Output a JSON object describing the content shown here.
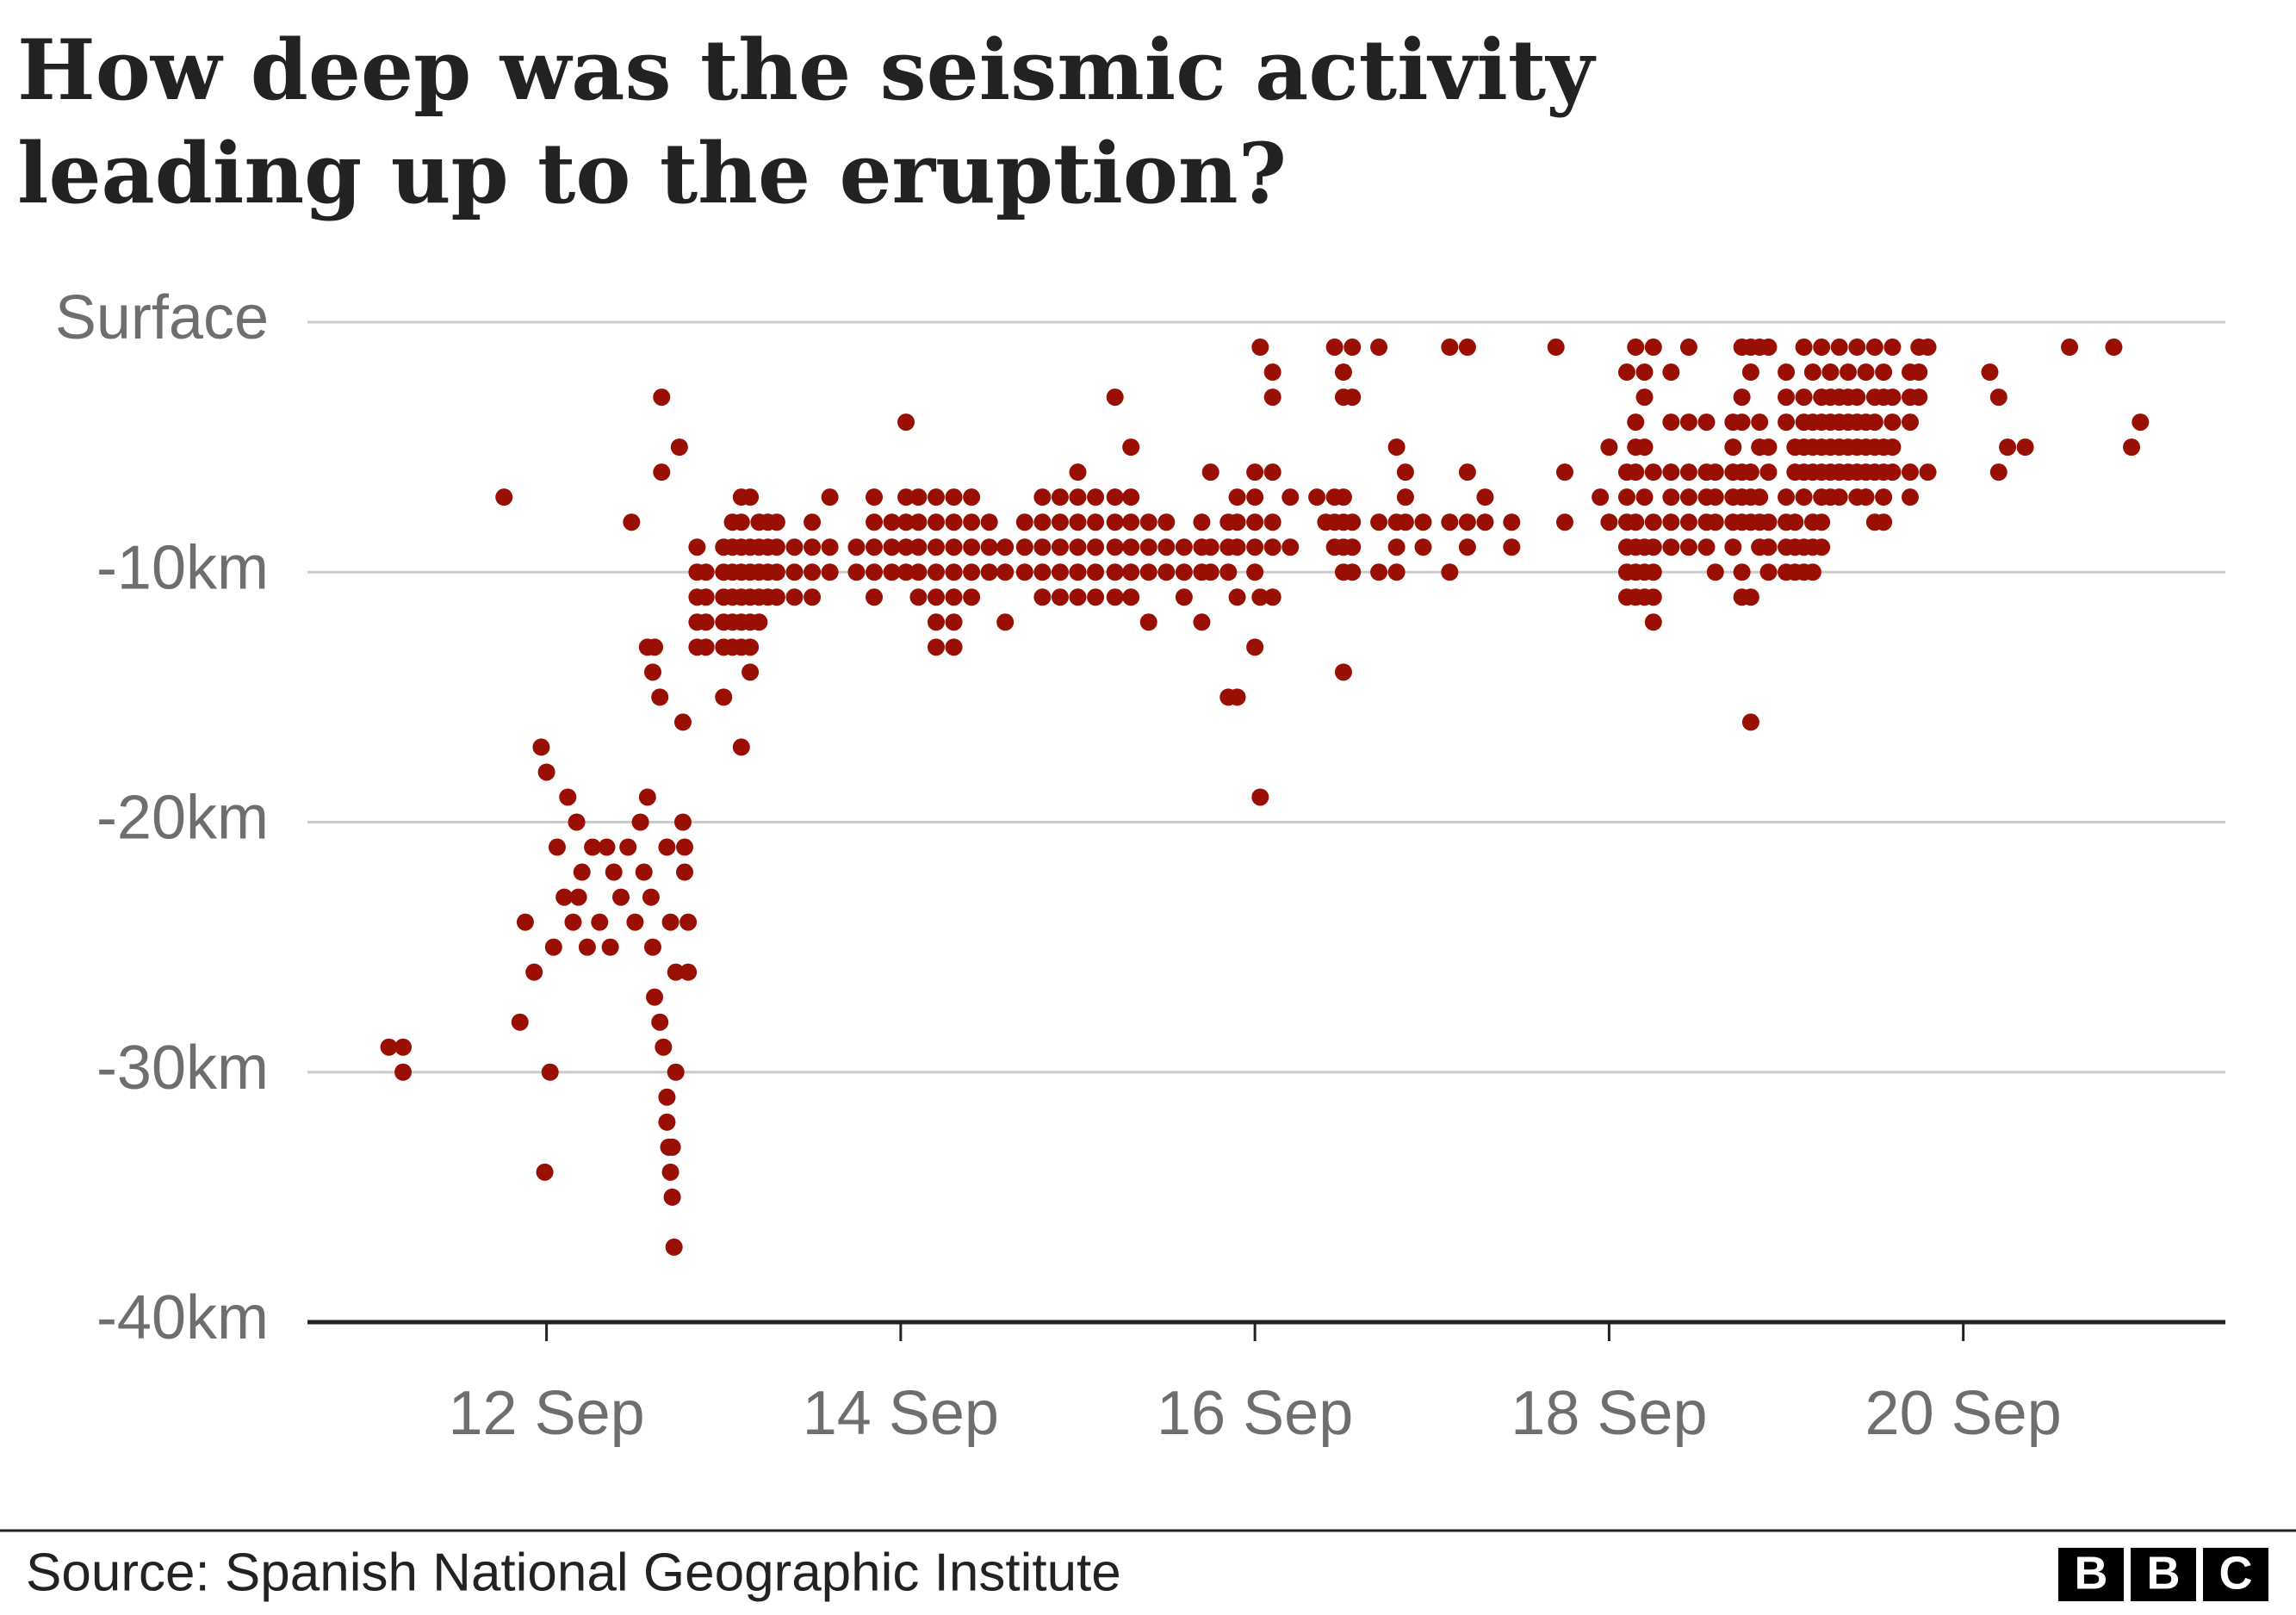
{
  "chart_data": {
    "type": "scatter",
    "title": "How deep was the seismic activity leading up to the eruption?",
    "source": "Source: Spanish National Geographic Institute",
    "logo": [
      "B",
      "B",
      "C"
    ],
    "color": "#990f04",
    "grid": true,
    "xlim": [
      10.65,
      21.48
    ],
    "ylim": [
      -40,
      0
    ],
    "xticks": [
      {
        "value": 12,
        "label": "12 Sep"
      },
      {
        "value": 14,
        "label": "14 Sep"
      },
      {
        "value": 16,
        "label": "16 Sep"
      },
      {
        "value": 18,
        "label": "18 Sep"
      },
      {
        "value": 20,
        "label": "20 Sep"
      }
    ],
    "yticks": [
      {
        "value": 0,
        "label": "Surface"
      },
      {
        "value": -10,
        "label": "-10km"
      },
      {
        "value": -20,
        "label": "-20km"
      },
      {
        "value": -30,
        "label": "-30km"
      },
      {
        "value": -40,
        "label": "-40km"
      }
    ],
    "x": [
      11.11,
      11.19,
      11.19,
      11.76,
      11.85,
      11.88,
      11.93,
      11.97,
      11.99,
      12.0,
      12.02,
      12.04,
      12.06,
      12.1,
      12.12,
      12.15,
      12.17,
      12.18,
      12.2,
      12.23,
      12.26,
      12.3,
      12.34,
      12.36,
      12.38,
      12.42,
      12.46,
      12.48,
      12.5,
      12.53,
      12.55,
      12.57,
      12.57,
      12.59,
      12.6,
      12.6,
      12.61,
      12.61,
      12.64,
      12.64,
      12.65,
      12.65,
      12.66,
      12.68,
      12.68,
      12.68,
      12.69,
      12.7,
      12.7,
      12.71,
      12.71,
      12.72,
      12.73,
      12.73,
      12.75,
      12.77,
      12.77,
      12.78,
      12.78,
      12.8,
      12.8,
      12.85,
      12.85,
      12.85,
      12.85,
      12.85,
      12.9,
      12.9,
      12.9,
      12.9,
      13.0,
      13.0,
      13.0,
      13.0,
      13.0,
      13.0,
      13.05,
      13.05,
      13.05,
      13.05,
      13.05,
      13.05,
      13.1,
      13.1,
      13.1,
      13.1,
      13.1,
      13.1,
      13.1,
      13.1,
      13.15,
      13.15,
      13.15,
      13.15,
      13.15,
      13.15,
      13.15,
      13.2,
      13.2,
      13.2,
      13.2,
      13.2,
      13.25,
      13.25,
      13.25,
      13.25,
      13.3,
      13.3,
      13.3,
      13.3,
      13.4,
      13.4,
      13.4,
      13.5,
      13.5,
      13.5,
      13.5,
      13.6,
      13.6,
      13.6,
      13.75,
      13.75,
      13.85,
      13.85,
      13.85,
      13.85,
      13.85,
      13.95,
      13.95,
      13.95,
      14.03,
      14.03,
      14.03,
      14.03,
      14.03,
      14.1,
      14.1,
      14.1,
      14.1,
      14.1,
      14.2,
      14.2,
      14.2,
      14.2,
      14.2,
      14.2,
      14.2,
      14.3,
      14.3,
      14.3,
      14.3,
      14.3,
      14.3,
      14.3,
      14.4,
      14.4,
      14.4,
      14.4,
      14.4,
      14.5,
      14.5,
      14.5,
      14.59,
      14.59,
      14.59,
      14.7,
      14.7,
      14.7,
      14.8,
      14.8,
      14.8,
      14.8,
      14.8,
      14.9,
      14.9,
      14.9,
      14.9,
      14.9,
      15.0,
      15.0,
      15.0,
      15.0,
      15.0,
      15.0,
      15.1,
      15.1,
      15.1,
      15.1,
      15.1,
      15.21,
      15.21,
      15.21,
      15.21,
      15.21,
      15.21,
      15.3,
      15.3,
      15.3,
      15.3,
      15.3,
      15.3,
      15.4,
      15.4,
      15.4,
      15.4,
      15.5,
      15.5,
      15.5,
      15.6,
      15.6,
      15.6,
      15.7,
      15.7,
      15.7,
      15.7,
      15.75,
      15.75,
      15.75,
      15.85,
      15.85,
      15.85,
      15.85,
      15.9,
      15.9,
      15.9,
      15.9,
      15.9,
      16.0,
      16.0,
      16.0,
      16.0,
      16.0,
      16.0,
      16.03,
      16.03,
      16.03,
      16.1,
      16.1,
      16.1,
      16.1,
      16.1,
      16.1,
      16.2,
      16.2,
      16.35,
      16.4,
      16.45,
      16.45,
      16.45,
      16.45,
      16.5,
      16.5,
      16.5,
      16.5,
      16.5,
      16.5,
      16.5,
      16.55,
      16.55,
      16.55,
      16.55,
      16.55,
      16.7,
      16.7,
      16.7,
      16.8,
      16.8,
      16.8,
      16.8,
      16.85,
      16.85,
      16.85,
      16.95,
      16.95,
      17.1,
      17.1,
      17.1,
      17.2,
      17.2,
      17.2,
      17.2,
      17.3,
      17.3,
      17.45,
      17.45,
      17.7,
      17.75,
      17.75,
      17.95,
      18.0,
      18.0,
      18.1,
      18.1,
      18.1,
      18.1,
      18.1,
      18.1,
      18.1,
      18.15,
      18.15,
      18.15,
      18.15,
      18.15,
      18.15,
      18.15,
      18.15,
      18.2,
      18.2,
      18.2,
      18.2,
      18.2,
      18.2,
      18.2,
      18.25,
      18.25,
      18.25,
      18.25,
      18.25,
      18.25,
      18.25,
      18.35,
      18.35,
      18.35,
      18.35,
      18.35,
      18.35,
      18.45,
      18.45,
      18.45,
      18.45,
      18.45,
      18.45,
      18.55,
      18.55,
      18.55,
      18.55,
      18.55,
      18.6,
      18.6,
      18.6,
      18.6,
      18.7,
      18.7,
      18.7,
      18.7,
      18.7,
      18.7,
      18.75,
      18.75,
      18.75,
      18.75,
      18.75,
      18.75,
      18.75,
      18.75,
      18.8,
      18.8,
      18.8,
      18.8,
      18.8,
      18.8,
      18.8,
      18.85,
      18.85,
      18.85,
      18.85,
      18.85,
      18.85,
      18.9,
      18.9,
      18.9,
      18.9,
      18.9,
      18.9,
      19.0,
      19.0,
      19.0,
      19.0,
      19.0,
      19.0,
      19.0,
      19.05,
      19.05,
      19.05,
      19.05,
      19.05,
      19.1,
      19.1,
      19.1,
      19.1,
      19.1,
      19.1,
      19.1,
      19.1,
      19.15,
      19.15,
      19.15,
      19.15,
      19.15,
      19.15,
      19.15,
      19.2,
      19.2,
      19.2,
      19.2,
      19.2,
      19.2,
      19.2,
      19.2,
      19.25,
      19.25,
      19.25,
      19.25,
      19.25,
      19.25,
      19.3,
      19.3,
      19.3,
      19.3,
      19.3,
      19.3,
      19.35,
      19.35,
      19.35,
      19.35,
      19.35,
      19.4,
      19.4,
      19.4,
      19.4,
      19.4,
      19.4,
      19.45,
      19.45,
      19.45,
      19.45,
      19.45,
      19.5,
      19.5,
      19.5,
      19.5,
      19.5,
      19.5,
      19.55,
      19.55,
      19.55,
      19.55,
      19.55,
      19.55,
      19.6,
      19.6,
      19.6,
      19.6,
      19.6,
      19.7,
      19.7,
      19.7,
      19.7,
      19.7,
      19.75,
      19.75,
      19.75,
      19.8,
      19.8,
      20.15,
      20.2,
      20.2,
      20.25,
      20.35,
      20.6,
      20.85,
      20.95,
      21.0
    ],
    "values": [
      -29,
      -29,
      -30,
      -7,
      -28,
      -24,
      -26,
      -17,
      -34,
      -18,
      -30,
      -25,
      -21,
      -23,
      -19,
      -24,
      -20,
      -23,
      -22,
      -25,
      -21,
      -24,
      -21,
      -25,
      -22,
      -23,
      -21,
      -8,
      -24,
      -20,
      -22,
      -19,
      -13,
      -23,
      -25,
      -14,
      -27,
      -13,
      -15,
      -28,
      -3,
      -6,
      -29,
      -31,
      -32,
      -21,
      -33,
      -34,
      -24,
      -35,
      -33,
      -37,
      -26,
      -30,
      -5,
      -16,
      -20,
      -22,
      -21,
      -24,
      -26,
      -9,
      -10,
      -11,
      -12,
      -13,
      -10,
      -11,
      -12,
      -13,
      -9,
      -10,
      -11,
      -12,
      -13,
      -15,
      -8,
      -9,
      -10,
      -11,
      -12,
      -13,
      -7,
      -8,
      -9,
      -10,
      -11,
      -12,
      -13,
      -17,
      -7,
      -9,
      -10,
      -11,
      -12,
      -13,
      -14,
      -8,
      -9,
      -10,
      -11,
      -12,
      -8,
      -9,
      -10,
      -11,
      -8,
      -9,
      -10,
      -11,
      -9,
      -10,
      -11,
      -8,
      -9,
      -10,
      -11,
      -7,
      -9,
      -10,
      -9,
      -10,
      -7,
      -8,
      -9,
      -10,
      -11,
      -8,
      -9,
      -10,
      -4,
      -7,
      -8,
      -9,
      -10,
      -7,
      -8,
      -9,
      -10,
      -11,
      -7,
      -8,
      -9,
      -10,
      -11,
      -12,
      -13,
      -7,
      -8,
      -9,
      -10,
      -11,
      -12,
      -13,
      -7,
      -8,
      -9,
      -10,
      -11,
      -8,
      -9,
      -10,
      -9,
      -10,
      -12,
      -8,
      -9,
      -10,
      -7,
      -8,
      -9,
      -10,
      -11,
      -7,
      -8,
      -9,
      -10,
      -11,
      -6,
      -7,
      -8,
      -9,
      -10,
      -11,
      -7,
      -8,
      -9,
      -10,
      -11,
      -3,
      -7,
      -8,
      -9,
      -10,
      -11,
      -5,
      -7,
      -8,
      -9,
      -10,
      -11,
      -8,
      -9,
      -10,
      -12,
      -8,
      -9,
      -10,
      -9,
      -10,
      -11,
      -8,
      -9,
      -10,
      -12,
      -6,
      -9,
      -10,
      -15,
      -9,
      -8,
      -10,
      -15,
      -7,
      -8,
      -9,
      -11,
      -6,
      -7,
      -8,
      -9,
      -10,
      -13,
      -1,
      -19,
      -11,
      -2,
      -3,
      -6,
      -8,
      -9,
      -11,
      -7,
      -9,
      -7,
      -8,
      -1,
      -7,
      -8,
      -9,
      -2,
      -3,
      -7,
      -8,
      -9,
      -10,
      -14,
      -1,
      -3,
      -8,
      -9,
      -10,
      -1,
      -8,
      -10,
      -5,
      -8,
      -9,
      -10,
      -6,
      -7,
      -8,
      -8,
      -9,
      -1,
      -8,
      -10,
      -1,
      -6,
      -8,
      -9,
      -7,
      -8,
      -8,
      -9,
      -1,
      -6,
      -8,
      -7,
      -5,
      -8,
      -2,
      -6,
      -7,
      -8,
      -9,
      -10,
      -11,
      -1,
      -4,
      -5,
      -6,
      -8,
      -9,
      -10,
      -11,
      -2,
      -3,
      -5,
      -7,
      -9,
      -10,
      -11,
      -1,
      -6,
      -8,
      -9,
      -10,
      -11,
      -12,
      -2,
      -4,
      -6,
      -7,
      -8,
      -9,
      -1,
      -4,
      -6,
      -7,
      -8,
      -9,
      -4,
      -6,
      -7,
      -8,
      -9,
      -6,
      -7,
      -8,
      -10,
      -4,
      -5,
      -6,
      -7,
      -8,
      -9,
      -1,
      -3,
      -4,
      -6,
      -7,
      -8,
      -10,
      -11,
      -1,
      -2,
      -6,
      -7,
      -8,
      -11,
      -16,
      -1,
      -4,
      -5,
      -7,
      -8,
      -9,
      -1,
      -5,
      -6,
      -8,
      -9,
      -10,
      -2,
      -3,
      -4,
      -7,
      -8,
      -9,
      -10,
      -5,
      -6,
      -8,
      -9,
      -10,
      -1,
      -3,
      -4,
      -5,
      -6,
      -7,
      -9,
      -10,
      -2,
      -4,
      -5,
      -6,
      -8,
      -9,
      -10,
      -1,
      -3,
      -4,
      -5,
      -6,
      -7,
      -8,
      -9,
      -2,
      -3,
      -4,
      -5,
      -6,
      -7,
      -1,
      -3,
      -4,
      -5,
      -6,
      -7,
      -2,
      -3,
      -4,
      -5,
      -6,
      -1,
      -3,
      -4,
      -5,
      -6,
      -7,
      -2,
      -4,
      -5,
      -6,
      -7,
      -1,
      -3,
      -4,
      -5,
      -6,
      -8,
      -2,
      -3,
      -5,
      -6,
      -7,
      -8,
      -1,
      -3,
      -4,
      -5,
      -6,
      -2,
      -3,
      -4,
      -6,
      -7,
      -1,
      -2,
      -3,
      -1,
      -6,
      -2,
      -3,
      -6,
      -5,
      -5,
      -1,
      -1,
      -5,
      -4
    ]
  }
}
